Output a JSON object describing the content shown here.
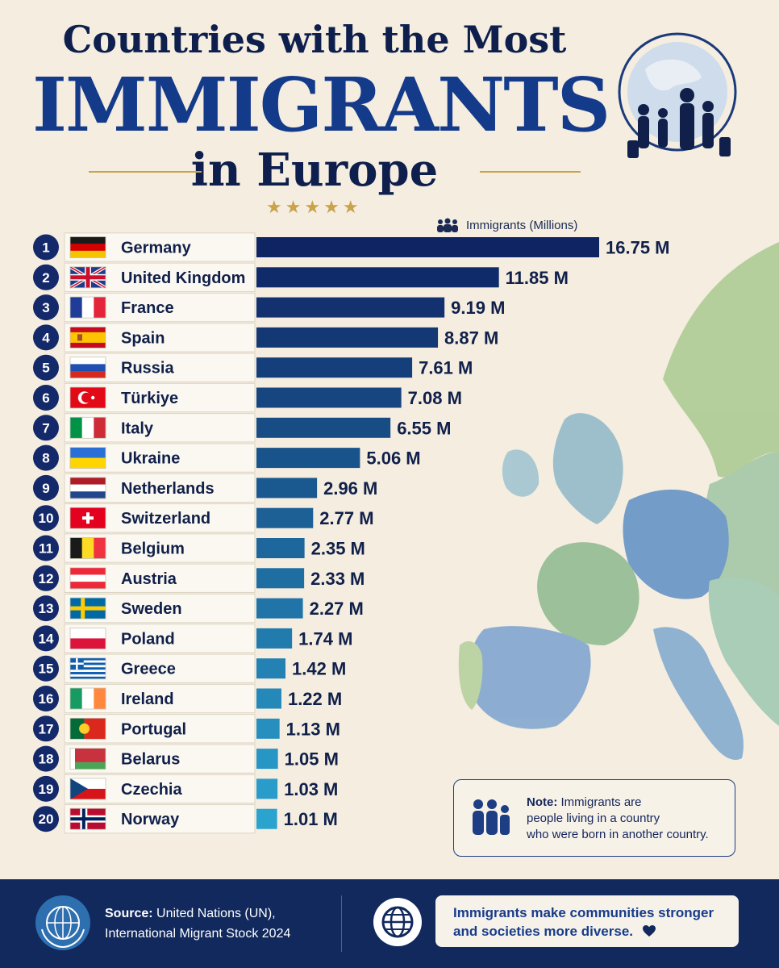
{
  "header": {
    "title_line1": "Countries with the Most",
    "title_line2": "IMMIGRANTS",
    "title_line3": "in Europe",
    "stars": "★★★★★"
  },
  "legend": {
    "label": "Immigrants (Millions)",
    "icon": "people-group-icon"
  },
  "chart_data": {
    "type": "bar",
    "orientation": "horizontal",
    "unit": "M",
    "series_label": "Immigrants (Millions)",
    "categories": [
      "Germany",
      "United Kingdom",
      "France",
      "Spain",
      "Russia",
      "Türkiye",
      "Italy",
      "Ukraine",
      "Netherlands",
      "Switzerland",
      "Belgium",
      "Austria",
      "Sweden",
      "Poland",
      "Greece",
      "Ireland",
      "Portugal",
      "Belarus",
      "Czechia",
      "Norway"
    ],
    "ranks": [
      1,
      2,
      3,
      4,
      5,
      6,
      7,
      8,
      9,
      10,
      11,
      12,
      13,
      14,
      15,
      16,
      17,
      18,
      19,
      20
    ],
    "values": [
      16.75,
      11.85,
      9.19,
      8.87,
      7.61,
      7.08,
      6.55,
      5.06,
      2.96,
      2.77,
      2.35,
      2.33,
      2.27,
      1.74,
      1.42,
      1.22,
      1.13,
      1.05,
      1.03,
      1.01
    ],
    "value_labels": [
      "16.75 M",
      "11.85 M",
      "9.19 M",
      "8.87 M",
      "7.61 M",
      "7.08 M",
      "6.55 M",
      "5.06 M",
      "2.96 M",
      "2.77 M",
      "2.35 M",
      "2.33 M",
      "2.27 M",
      "1.74 M",
      "1.42 M",
      "1.22 M",
      "1.13 M",
      "1.05 M",
      "1.03 M",
      "1.01 M"
    ],
    "flags": [
      "germany-flag",
      "united-kingdom-flag",
      "france-flag",
      "spain-flag",
      "russia-flag",
      "turkiye-flag",
      "italy-flag",
      "ukraine-flag",
      "netherlands-flag",
      "switzerland-flag",
      "belgium-flag",
      "austria-flag",
      "sweden-flag",
      "poland-flag",
      "greece-flag",
      "ireland-flag",
      "portugal-flag",
      "belarus-flag",
      "czechia-flag",
      "norway-flag"
    ],
    "bar_color_start": "#0f2463",
    "bar_color_end": "#2aa3cf"
  },
  "note": {
    "bold": "Note:",
    "line1": " Immigrants are",
    "line2": "people living in a country",
    "line3": "who were born in another country."
  },
  "footer": {
    "source_bold": "Source:",
    "source_line1": " United Nations (UN),",
    "source_line2": "International Migrant Stock 2024",
    "message_line1": "Immigrants make communities stronger",
    "message_line2": "and societies more diverse.",
    "message_icon": "heart-icon"
  },
  "colors": {
    "navy": "#12295e",
    "accent_gold": "#c9a24a",
    "background": "#f4ede0"
  }
}
